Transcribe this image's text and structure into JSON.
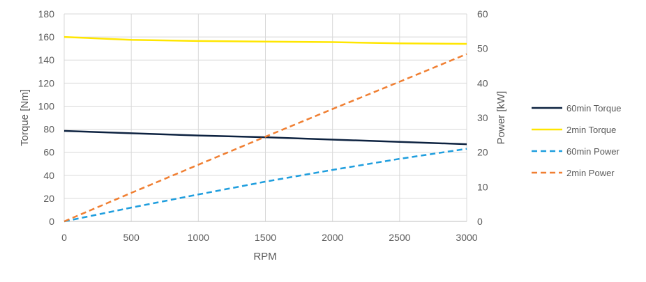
{
  "chart_data": {
    "type": "line",
    "title": "",
    "xlabel": "RPM",
    "ylabel": "Torque [Nm]",
    "y2label": "Power [kW]",
    "xlim": [
      0,
      3000
    ],
    "ylim": [
      0,
      180
    ],
    "y2lim": [
      0,
      60
    ],
    "xticks": [
      "0",
      "500",
      "1000",
      "1500",
      "2000",
      "2500",
      "3000"
    ],
    "yticks": [
      "0",
      "20",
      "40",
      "60",
      "80",
      "100",
      "120",
      "140",
      "160",
      "180"
    ],
    "y2ticks": [
      "0",
      "10",
      "20",
      "30",
      "40",
      "50",
      "60"
    ],
    "grid": true,
    "legend": "right",
    "x": [
      0,
      500,
      1000,
      1500,
      2000,
      2500,
      3000
    ],
    "series": [
      {
        "name": "60min Torque",
        "axis": "left",
        "color": "#0d2240",
        "dash": false,
        "values": [
          78.5,
          76.5,
          74.5,
          73,
          71,
          69,
          67
        ]
      },
      {
        "name": "2min Torque",
        "axis": "left",
        "color": "#ffe600",
        "dash": false,
        "values": [
          160,
          157.5,
          156.5,
          156,
          155.5,
          154.5,
          154
        ]
      },
      {
        "name": "60min Power",
        "axis": "right",
        "color": "#1f9ede",
        "dash": true,
        "values": [
          0,
          4.0,
          7.8,
          11.5,
          14.9,
          18.1,
          21.0
        ]
      },
      {
        "name": "2min Power",
        "axis": "right",
        "color": "#f07f32",
        "dash": true,
        "values": [
          0,
          8.25,
          16.4,
          24.5,
          32.5,
          40.4,
          48.4
        ]
      }
    ]
  }
}
